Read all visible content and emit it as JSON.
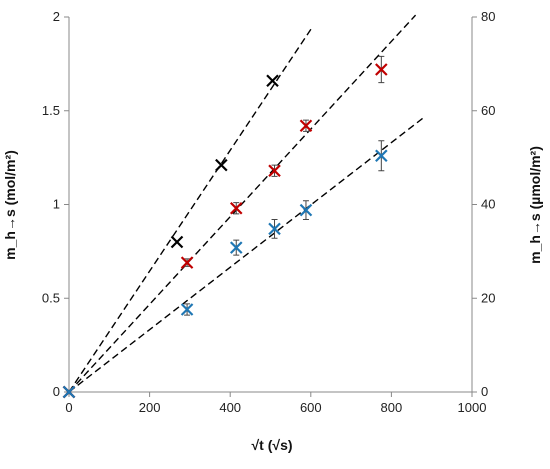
{
  "chart_data": {
    "type": "scatter",
    "title": "",
    "xlabel": "√t (√s)",
    "ylabel_left": "m_h→s (mol/m²)",
    "ylabel_right": "m_h→s (µmol/m²)",
    "xlim": [
      0,
      1000
    ],
    "ylim_left": [
      0,
      2
    ],
    "ylim_right": [
      0,
      80
    ],
    "x_ticks": [
      "0",
      "200",
      "400",
      "600",
      "800",
      "1000"
    ],
    "y_ticks_left": [
      "0",
      "0.5",
      "1",
      "1.5",
      "2"
    ],
    "y_ticks_right": [
      "0",
      "20",
      "40",
      "60",
      "80"
    ],
    "grid": false,
    "legend": "none",
    "series": [
      {
        "color": "#000000",
        "marker": "x",
        "points": [
          {
            "x": 0,
            "y": 0
          },
          {
            "x": 268,
            "y": 0.8
          },
          {
            "x": 378,
            "y": 1.21
          },
          {
            "x": 505,
            "y": 1.66
          }
        ],
        "fit_line": {
          "x_end": 605,
          "y_end": 1.95
        }
      },
      {
        "color": "#c00000",
        "marker": "x",
        "points": [
          {
            "x": 0,
            "y": 0,
            "err": 0
          },
          {
            "x": 293,
            "y": 0.69,
            "err": 0.02
          },
          {
            "x": 415,
            "y": 0.98,
            "err": 0.03
          },
          {
            "x": 510,
            "y": 1.18,
            "err": 0.03
          },
          {
            "x": 588,
            "y": 1.42,
            "err": 0.03
          },
          {
            "x": 775,
            "y": 1.72,
            "err": 0.07
          }
        ],
        "fit_line": {
          "x_end": 860,
          "y_end": 2.01
        }
      },
      {
        "color": "#1f77b4",
        "marker": "x",
        "points": [
          {
            "x": 0,
            "y": 0,
            "err": 0
          },
          {
            "x": 293,
            "y": 0.44,
            "err": 0.03
          },
          {
            "x": 415,
            "y": 0.77,
            "err": 0.04
          },
          {
            "x": 510,
            "y": 0.87,
            "err": 0.05
          },
          {
            "x": 588,
            "y": 0.97,
            "err": 0.05
          },
          {
            "x": 775,
            "y": 1.26,
            "err": 0.08
          }
        ],
        "fit_line": {
          "x_end": 878,
          "y_end": 1.46
        }
      }
    ]
  }
}
